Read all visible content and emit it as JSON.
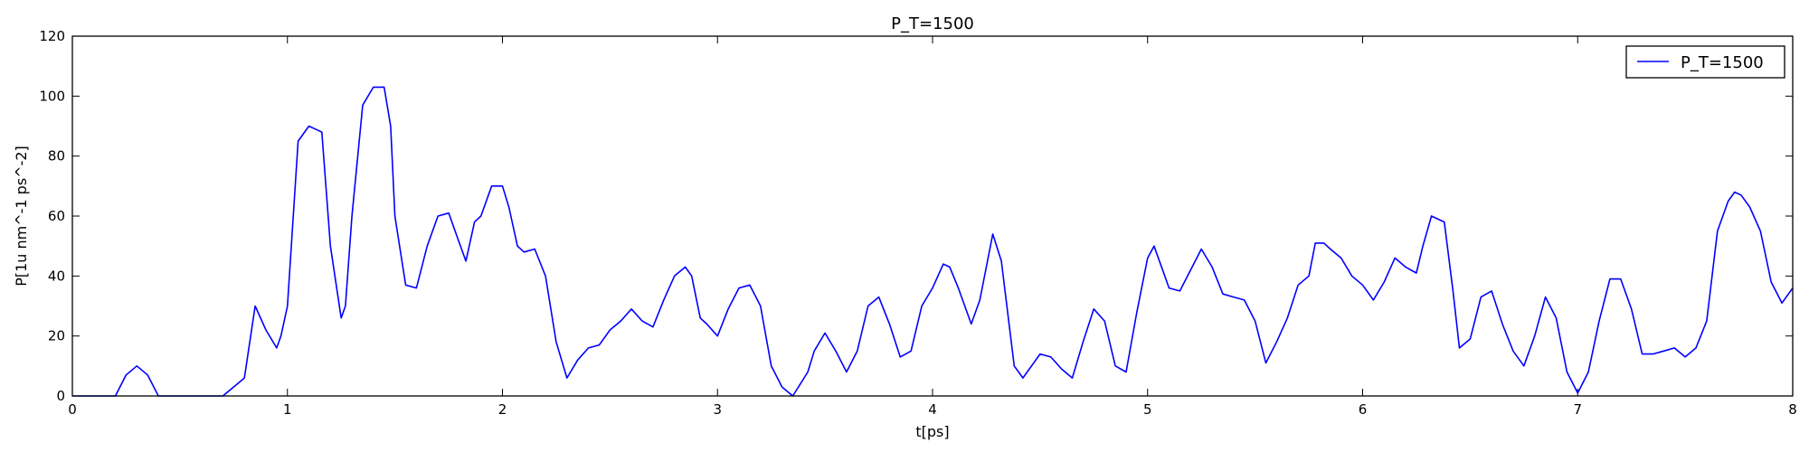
{
  "chart_data": {
    "type": "line",
    "title": "P_T=1500",
    "xlabel": "t[ps]",
    "ylabel": "P[1u nm^-1 ps^-2]",
    "xlim": [
      0,
      8
    ],
    "ylim": [
      0,
      120
    ],
    "xticks": [
      0,
      1,
      2,
      3,
      4,
      5,
      6,
      7,
      8
    ],
    "yticks": [
      0,
      20,
      40,
      60,
      80,
      100,
      120
    ],
    "grid": false,
    "legend_position": "top-right",
    "line_color": "#0000ff",
    "series": [
      {
        "name": "P_T=1500",
        "x": [
          0,
          0.2,
          0.25,
          0.3,
          0.35,
          0.4,
          0.5,
          0.6,
          0.7,
          0.75,
          0.8,
          0.85,
          0.9,
          0.95,
          0.97,
          1.0,
          1.05,
          1.1,
          1.13,
          1.16,
          1.2,
          1.25,
          1.27,
          1.3,
          1.35,
          1.4,
          1.45,
          1.48,
          1.5,
          1.55,
          1.6,
          1.65,
          1.7,
          1.75,
          1.8,
          1.83,
          1.87,
          1.9,
          1.95,
          2.0,
          2.03,
          2.07,
          2.1,
          2.15,
          2.2,
          2.25,
          2.3,
          2.35,
          2.4,
          2.45,
          2.5,
          2.55,
          2.6,
          2.65,
          2.7,
          2.75,
          2.8,
          2.85,
          2.88,
          2.92,
          2.95,
          3.0,
          3.05,
          3.1,
          3.15,
          3.2,
          3.25,
          3.3,
          3.35,
          3.42,
          3.45,
          3.5,
          3.55,
          3.6,
          3.65,
          3.7,
          3.75,
          3.8,
          3.85,
          3.9,
          3.95,
          4.0,
          4.05,
          4.08,
          4.12,
          4.18,
          4.22,
          4.28,
          4.32,
          4.38,
          4.42,
          4.5,
          4.55,
          4.6,
          4.65,
          4.7,
          4.75,
          4.8,
          4.85,
          4.9,
          4.95,
          5.0,
          5.03,
          5.07,
          5.1,
          5.15,
          5.2,
          5.25,
          5.3,
          5.35,
          5.4,
          5.45,
          5.5,
          5.55,
          5.6,
          5.65,
          5.7,
          5.75,
          5.78,
          5.82,
          5.85,
          5.9,
          5.95,
          6.0,
          6.05,
          6.1,
          6.15,
          6.2,
          6.25,
          6.28,
          6.32,
          6.38,
          6.42,
          6.45,
          6.5,
          6.55,
          6.6,
          6.65,
          6.7,
          6.75,
          6.8,
          6.85,
          6.9,
          6.95,
          7.0,
          7.05,
          7.1,
          7.15,
          7.2,
          7.25,
          7.3,
          7.35,
          7.4,
          7.45,
          7.5,
          7.55,
          7.6,
          7.65,
          7.7,
          7.73,
          7.76,
          7.8,
          7.85,
          7.9,
          7.95,
          8.0
        ],
        "y": [
          0,
          0,
          7,
          10,
          7,
          0,
          0,
          0,
          0,
          3,
          6,
          30,
          22,
          16,
          20,
          30,
          85,
          90,
          89,
          88,
          50,
          26,
          30,
          60,
          97,
          103,
          103,
          90,
          60,
          37,
          36,
          50,
          60,
          61,
          51,
          45,
          58,
          60,
          70,
          70,
          63,
          50,
          48,
          49,
          40,
          18,
          6,
          12,
          16,
          17,
          22,
          25,
          29,
          25,
          23,
          32,
          40,
          43,
          40,
          26,
          24,
          20,
          29,
          36,
          37,
          30,
          10,
          3,
          0,
          8,
          15,
          21,
          15,
          8,
          15,
          30,
          33,
          24,
          13,
          15,
          30,
          36,
          44,
          43,
          36,
          24,
          32,
          54,
          45,
          10,
          6,
          14,
          13,
          9,
          6,
          18,
          29,
          25,
          10,
          8,
          28,
          46,
          50,
          42,
          36,
          35,
          42,
          49,
          43,
          34,
          33,
          32,
          25,
          11,
          18,
          26,
          37,
          40,
          51,
          51,
          49,
          46,
          40,
          37,
          32,
          38,
          46,
          43,
          41,
          50,
          60,
          58,
          35,
          16,
          19,
          33,
          35,
          24,
          15,
          10,
          20,
          33,
          26,
          8,
          1,
          8,
          25,
          39,
          39,
          29,
          14,
          14,
          15,
          16,
          13,
          16,
          25,
          55,
          65,
          68,
          67,
          63,
          55,
          38,
          31,
          36
        ]
      }
    ]
  }
}
